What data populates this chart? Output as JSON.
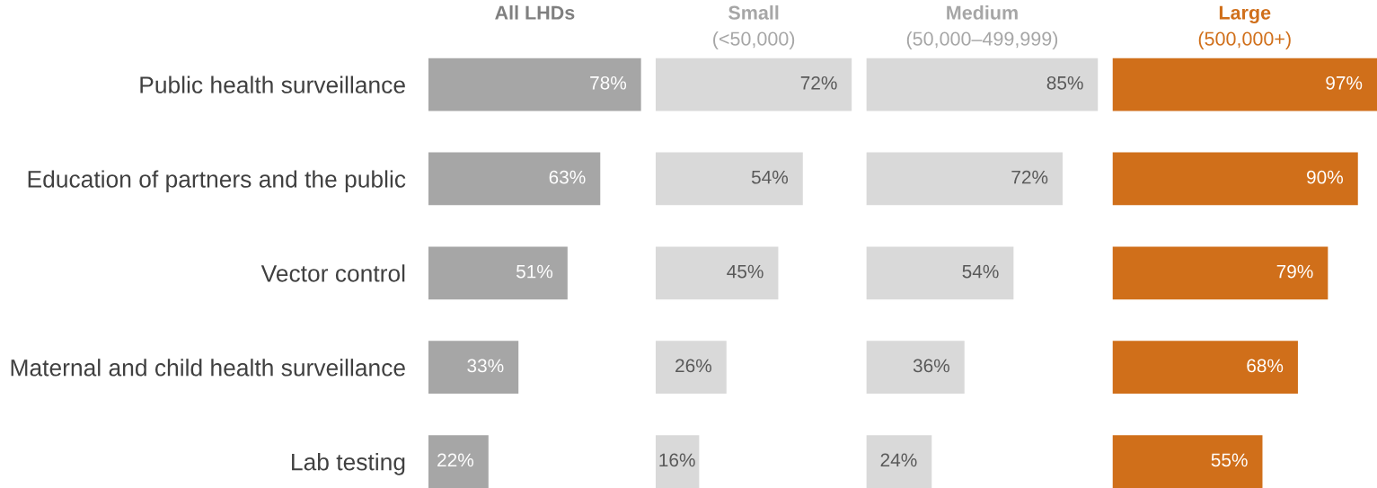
{
  "chart_data": [
    {
      "type": "bar",
      "orientation": "horizontal",
      "title": "All LHDs",
      "categories": [
        "Public health surveillance",
        "Education of partners and the public",
        "Vector control",
        "Maternal and child health surveillance",
        "Lab testing"
      ],
      "values": [
        78,
        63,
        51,
        33,
        22
      ],
      "value_labels": [
        "78%",
        "63%",
        "51%",
        "33%",
        "22%"
      ],
      "color": "#a6a6a6",
      "xlim": [
        0,
        78
      ],
      "tick_labels": "y"
    },
    {
      "type": "bar",
      "orientation": "horizontal",
      "title": "Small",
      "subtitle": "(<50,000)",
      "categories": [
        null,
        null,
        null,
        null,
        null
      ],
      "values": [
        72,
        54,
        45,
        26,
        16
      ],
      "value_labels": [
        "72%",
        "54%",
        "45%",
        "26%",
        "16%"
      ],
      "color": "#d9d9d9",
      "xlim": [
        0,
        72
      ]
    },
    {
      "type": "bar",
      "orientation": "horizontal",
      "title": "Medium",
      "subtitle": "(50,000–499,999)",
      "categories": [
        null,
        null,
        null,
        null,
        null
      ],
      "values": [
        85,
        72,
        54,
        36,
        24
      ],
      "value_labels": [
        "85%",
        "72%",
        "54%",
        "36%",
        "24%"
      ],
      "color": "#d9d9d9",
      "xlim": [
        0,
        85
      ]
    },
    {
      "type": "bar",
      "orientation": "horizontal",
      "title": "Large",
      "subtitle": "(500,000+)",
      "categories": [
        null,
        null,
        null,
        null,
        null
      ],
      "values": [
        97,
        90,
        79,
        68,
        55
      ],
      "value_labels": [
        "97%",
        "90%",
        "79%",
        "68%",
        "55%"
      ],
      "color": "#d06f1a",
      "xlim": [
        0,
        97
      ]
    }
  ]
}
